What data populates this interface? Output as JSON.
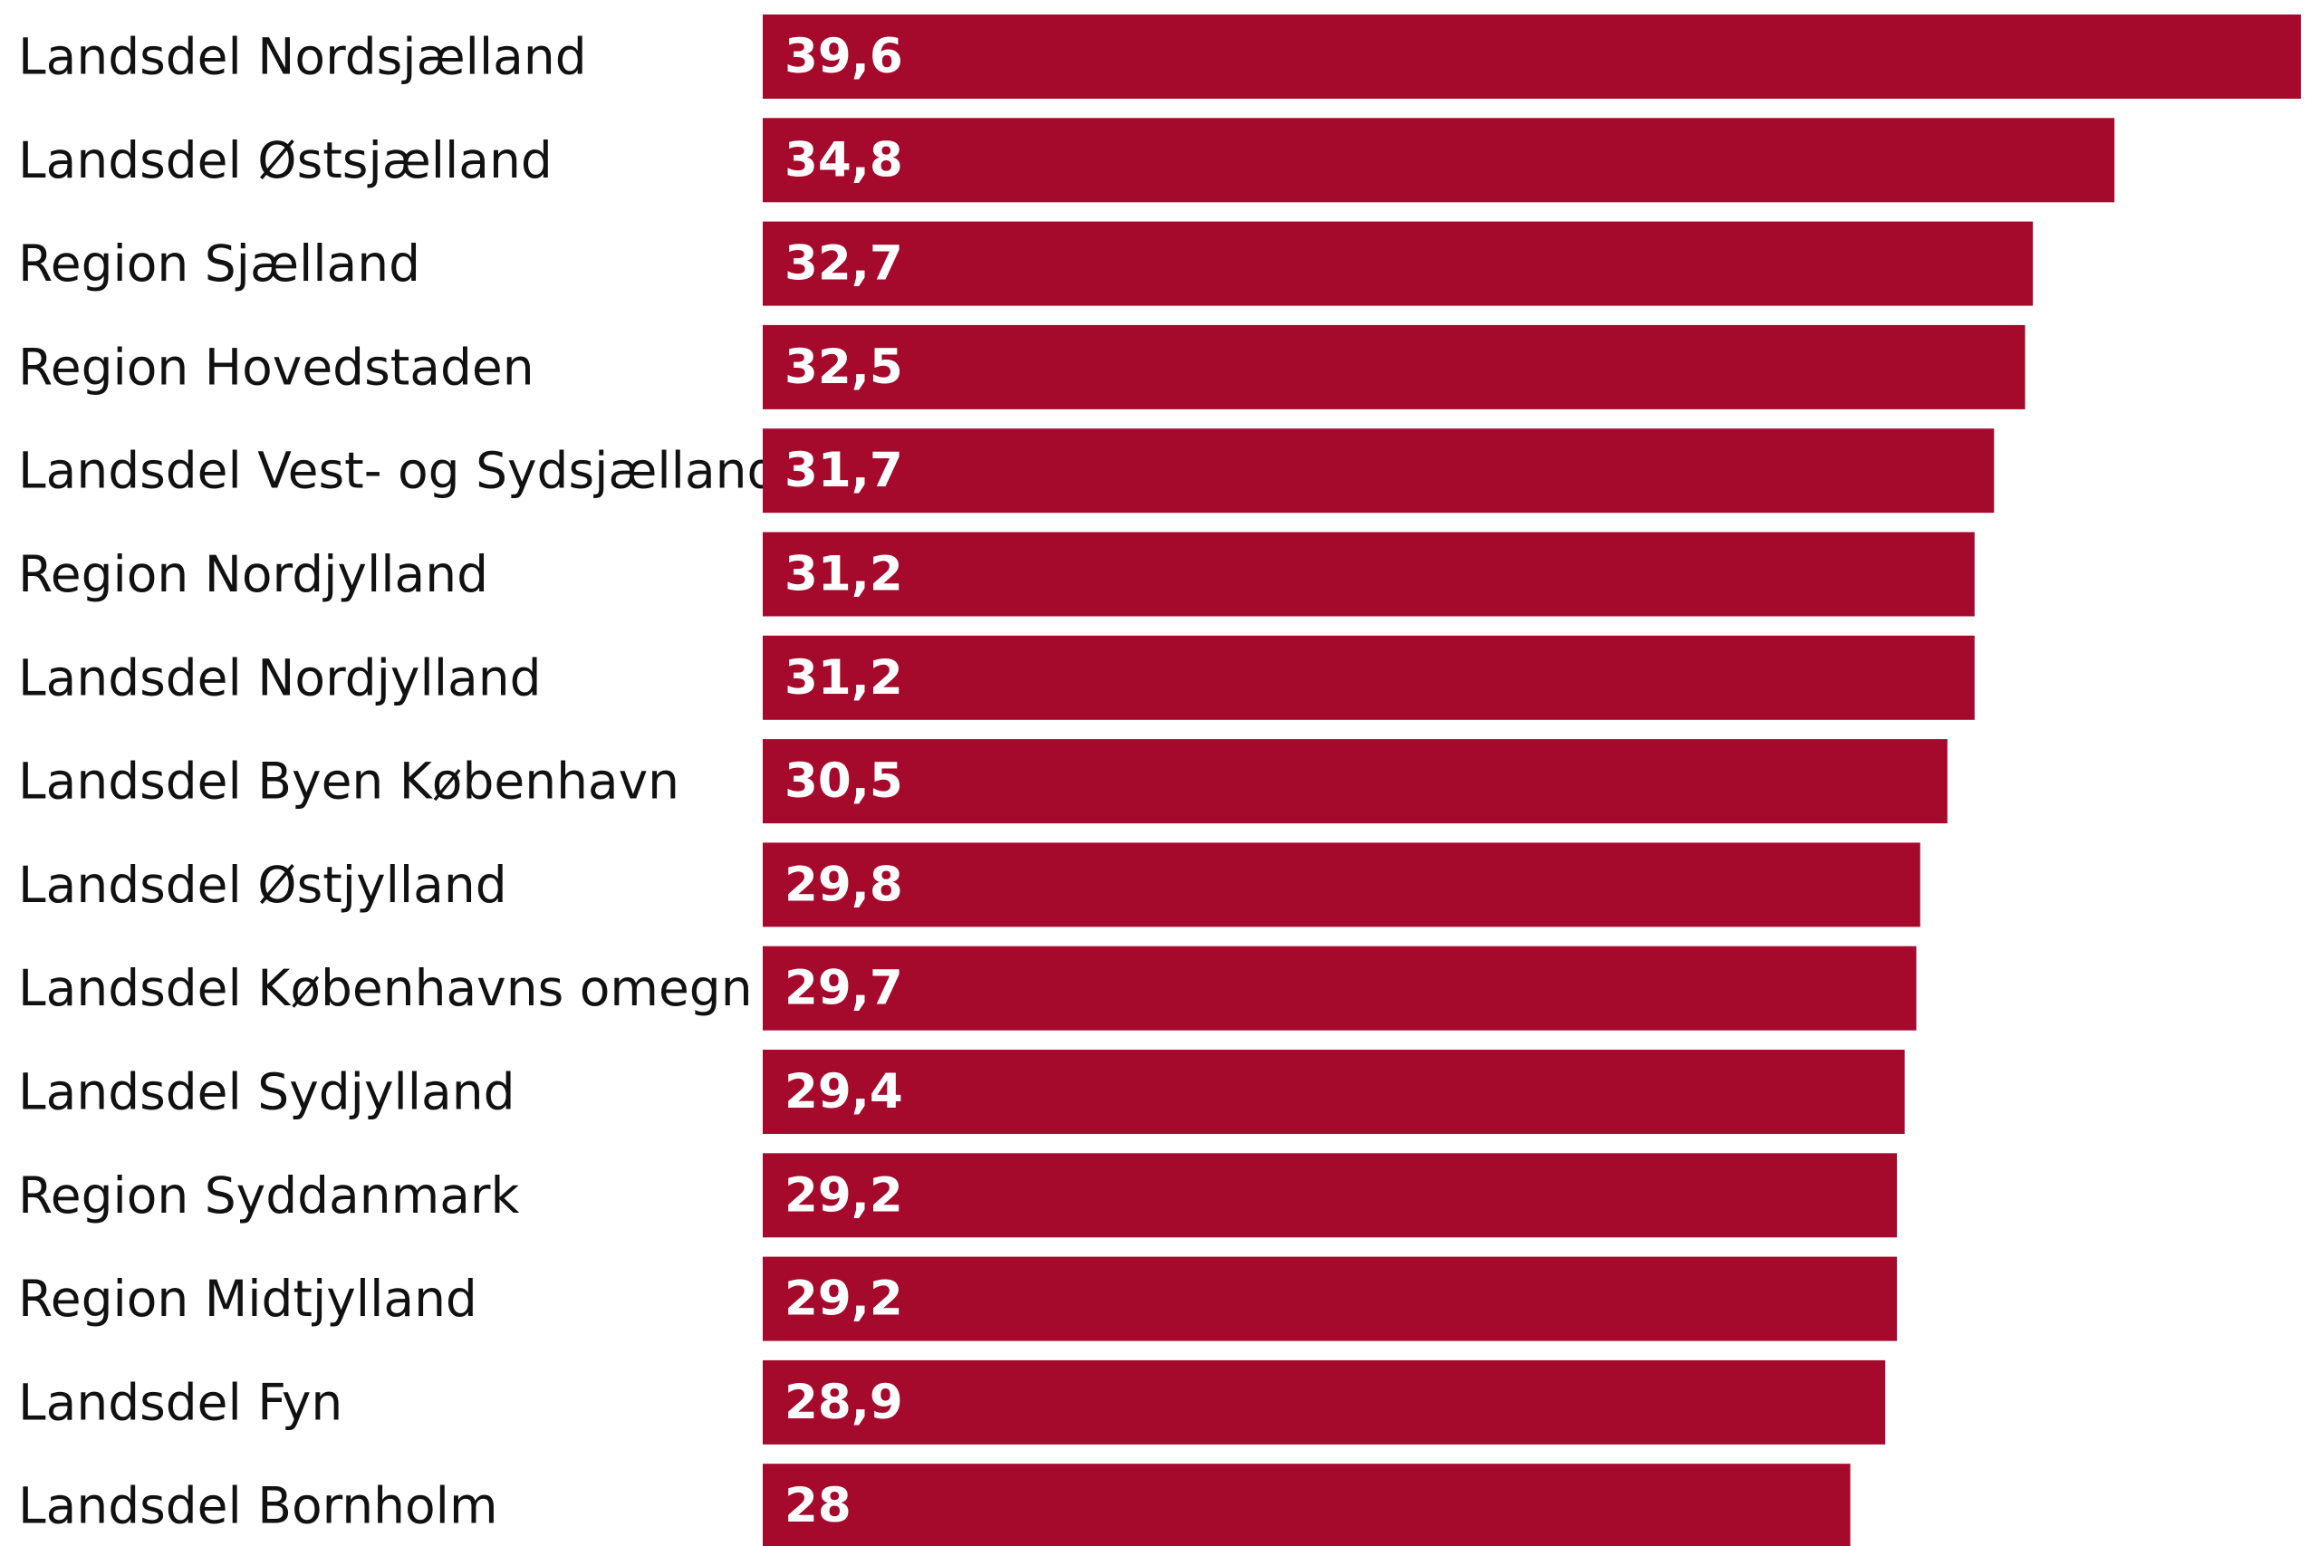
{
  "chart_data": {
    "type": "bar",
    "orientation": "horizontal",
    "categories": [
      "Landsdel Nordsjælland",
      "Landsdel Østsjælland",
      "Region Sjælland",
      "Region Hovedstaden",
      "Landsdel Vest- og Sydsjælland",
      "Region Nordjylland",
      "Landsdel Nordjylland",
      "Landsdel Byen København",
      "Landsdel Østjylland",
      "Landsdel Københavns omegn",
      "Landsdel Sydjylland",
      "Region Syddanmark",
      "Region Midtjylland",
      "Landsdel Fyn",
      "Landsdel Bornholm"
    ],
    "values": [
      39.6,
      34.8,
      32.7,
      32.5,
      31.7,
      31.2,
      31.2,
      30.5,
      29.8,
      29.7,
      29.4,
      29.2,
      29.2,
      28.9,
      28
    ],
    "value_labels": [
      "39,6",
      "34,8",
      "32,7",
      "32,5",
      "31,7",
      "31,2",
      "31,2",
      "30,5",
      "29,8",
      "29,7",
      "29,4",
      "29,2",
      "29,2",
      "28,9",
      "28"
    ],
    "xlim": [
      0,
      39.6
    ],
    "grid": false,
    "colors": {
      "bar": "#a50a2d",
      "value_text": "#ffffff",
      "category_text": "#111111"
    }
  }
}
